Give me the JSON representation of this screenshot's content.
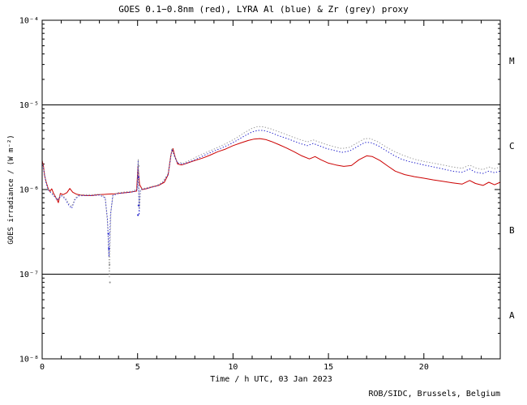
{
  "page": {
    "background": "#ffffff"
  },
  "footer": {
    "credit": "ROB/SIDC, Brussels, Belgium"
  },
  "chart_data": {
    "type": "line",
    "title": "GOES 0.1−0.8nm (red), LYRA Al (blue) & Zr (grey) proxy",
    "xlabel": "Time / h UTC, 03 Jan 2023",
    "ylabel": "GOES irradiance / (W m⁻²)",
    "xlim": [
      0,
      24
    ],
    "ylim": [
      1e-08,
      0.0001
    ],
    "y_scale": "log",
    "grid": false,
    "legend_position": "in-title",
    "x_ticks": {
      "major": [
        {
          "value": 0,
          "label": "0"
        },
        {
          "value": 5,
          "label": "5"
        },
        {
          "value": 10,
          "label": "10"
        },
        {
          "value": 15,
          "label": "15"
        },
        {
          "value": 20,
          "label": "20"
        }
      ],
      "minor_step": 1
    },
    "y_ticks": [
      {
        "value": 0.0001,
        "label": "10⁻⁴"
      },
      {
        "value": 1e-05,
        "label": "10⁻⁵"
      },
      {
        "value": 1e-06,
        "label": "10⁻⁶"
      },
      {
        "value": 1e-07,
        "label": "10⁻⁷"
      },
      {
        "value": 1e-08,
        "label": "10⁻⁸"
      }
    ],
    "threshold_lines": [
      {
        "value": 1e-05
      },
      {
        "value": 1e-07
      }
    ],
    "class_labels": [
      {
        "label": "M",
        "value": 3.2e-05
      },
      {
        "label": "C",
        "value": 3.2e-06
      },
      {
        "label": "B",
        "value": 3.2e-07
      },
      {
        "label": "A",
        "value": 3.2e-08
      }
    ],
    "flux_unit": "W m⁻²",
    "series": [
      {
        "name": "GOES 0.1-0.8nm",
        "color": "#cc0000",
        "style": "solid",
        "scale": 1e-06,
        "points": [
          [
            0,
            2.2
          ],
          [
            0.07,
            1.9
          ],
          [
            0.12,
            1.5
          ],
          [
            0.2,
            1.25
          ],
          [
            0.3,
            1.05
          ],
          [
            0.4,
            0.95
          ],
          [
            0.5,
            1.02
          ],
          [
            0.6,
            0.9
          ],
          [
            0.75,
            0.78
          ],
          [
            0.85,
            0.7
          ],
          [
            0.95,
            0.9
          ],
          [
            1.1,
            0.87
          ],
          [
            1.3,
            0.92
          ],
          [
            1.45,
            1.03
          ],
          [
            1.6,
            0.93
          ],
          [
            1.8,
            0.88
          ],
          [
            2,
            0.86
          ],
          [
            2.3,
            0.85
          ],
          [
            2.6,
            0.85
          ],
          [
            3,
            0.87
          ],
          [
            3.4,
            0.88
          ],
          [
            3.8,
            0.89
          ],
          [
            4.2,
            0.91
          ],
          [
            4.6,
            0.93
          ],
          [
            4.95,
            0.96
          ],
          [
            5.02,
            1.9
          ],
          [
            5.1,
            1.15
          ],
          [
            5.25,
            1.0
          ],
          [
            5.5,
            1.03
          ],
          [
            5.8,
            1.08
          ],
          [
            6.1,
            1.12
          ],
          [
            6.4,
            1.22
          ],
          [
            6.6,
            1.5
          ],
          [
            6.75,
            2.6
          ],
          [
            6.85,
            3.05
          ],
          [
            6.95,
            2.5
          ],
          [
            7.1,
            2.0
          ],
          [
            7.3,
            1.95
          ],
          [
            7.6,
            2.05
          ],
          [
            8,
            2.2
          ],
          [
            8.4,
            2.35
          ],
          [
            8.8,
            2.55
          ],
          [
            9.2,
            2.8
          ],
          [
            9.6,
            3.0
          ],
          [
            10,
            3.3
          ],
          [
            10.4,
            3.55
          ],
          [
            10.8,
            3.8
          ],
          [
            11.1,
            3.95
          ],
          [
            11.4,
            4.0
          ],
          [
            11.7,
            3.9
          ],
          [
            12,
            3.7
          ],
          [
            12.4,
            3.4
          ],
          [
            12.8,
            3.1
          ],
          [
            13.2,
            2.8
          ],
          [
            13.6,
            2.5
          ],
          [
            14,
            2.3
          ],
          [
            14.3,
            2.45
          ],
          [
            14.6,
            2.25
          ],
          [
            15,
            2.05
          ],
          [
            15.4,
            1.95
          ],
          [
            15.8,
            1.88
          ],
          [
            16.2,
            1.92
          ],
          [
            16.6,
            2.25
          ],
          [
            17,
            2.5
          ],
          [
            17.3,
            2.45
          ],
          [
            17.7,
            2.2
          ],
          [
            18.1,
            1.9
          ],
          [
            18.5,
            1.65
          ],
          [
            19,
            1.5
          ],
          [
            19.5,
            1.42
          ],
          [
            20,
            1.36
          ],
          [
            20.5,
            1.3
          ],
          [
            21,
            1.25
          ],
          [
            21.5,
            1.2
          ],
          [
            22,
            1.16
          ],
          [
            22.4,
            1.28
          ],
          [
            22.7,
            1.18
          ],
          [
            23.1,
            1.12
          ],
          [
            23.4,
            1.22
          ],
          [
            23.7,
            1.14
          ],
          [
            24,
            1.22
          ]
        ]
      },
      {
        "name": "LYRA Al proxy",
        "color": "#2222cc",
        "style": "dotted",
        "scale": 1e-06,
        "points": [
          [
            0,
            2.1
          ],
          [
            0.1,
            1.6
          ],
          [
            0.2,
            1.2
          ],
          [
            0.3,
            1.0
          ],
          [
            0.45,
            0.92
          ],
          [
            0.6,
            0.85
          ],
          [
            0.8,
            0.75
          ],
          [
            1,
            0.85
          ],
          [
            1.2,
            0.78
          ],
          [
            1.4,
            0.65
          ],
          [
            1.55,
            0.6
          ],
          [
            1.7,
            0.75
          ],
          [
            1.9,
            0.84
          ],
          [
            2.2,
            0.85
          ],
          [
            2.6,
            0.85
          ],
          [
            3,
            0.86
          ],
          [
            3.3,
            0.8
          ],
          [
            3.42,
            0.45
          ],
          [
            3.5,
            0.16
          ],
          [
            3.58,
            0.5
          ],
          [
            3.7,
            0.85
          ],
          [
            4,
            0.9
          ],
          [
            4.4,
            0.92
          ],
          [
            4.8,
            0.94
          ],
          [
            4.98,
            1.0
          ],
          [
            5.03,
            2.2
          ],
          [
            5.08,
            0.5
          ],
          [
            5.15,
            1.0
          ],
          [
            5.4,
            1.02
          ],
          [
            5.7,
            1.06
          ],
          [
            6,
            1.1
          ],
          [
            6.3,
            1.2
          ],
          [
            6.6,
            1.5
          ],
          [
            6.8,
            3.0
          ],
          [
            6.95,
            2.4
          ],
          [
            7.1,
            2.05
          ],
          [
            7.4,
            2.0
          ],
          [
            7.8,
            2.15
          ],
          [
            8.2,
            2.35
          ],
          [
            8.6,
            2.6
          ],
          [
            9,
            2.85
          ],
          [
            9.4,
            3.1
          ],
          [
            9.8,
            3.4
          ],
          [
            10.2,
            3.8
          ],
          [
            10.6,
            4.3
          ],
          [
            11,
            4.8
          ],
          [
            11.3,
            5.0
          ],
          [
            11.6,
            5.0
          ],
          [
            12,
            4.7
          ],
          [
            12.3,
            4.4
          ],
          [
            12.7,
            4.1
          ],
          [
            13.1,
            3.8
          ],
          [
            13.5,
            3.5
          ],
          [
            13.9,
            3.3
          ],
          [
            14.2,
            3.5
          ],
          [
            14.5,
            3.3
          ],
          [
            14.9,
            3.05
          ],
          [
            15.3,
            2.9
          ],
          [
            15.7,
            2.75
          ],
          [
            16.1,
            2.85
          ],
          [
            16.5,
            3.2
          ],
          [
            16.9,
            3.6
          ],
          [
            17.2,
            3.6
          ],
          [
            17.6,
            3.3
          ],
          [
            18,
            2.9
          ],
          [
            18.4,
            2.55
          ],
          [
            18.8,
            2.3
          ],
          [
            19.2,
            2.15
          ],
          [
            19.6,
            2.05
          ],
          [
            20,
            1.95
          ],
          [
            20.5,
            1.85
          ],
          [
            21,
            1.75
          ],
          [
            21.5,
            1.65
          ],
          [
            22,
            1.6
          ],
          [
            22.4,
            1.75
          ],
          [
            22.7,
            1.6
          ],
          [
            23.1,
            1.55
          ],
          [
            23.4,
            1.65
          ],
          [
            23.7,
            1.58
          ],
          [
            24,
            1.65
          ]
        ]
      },
      {
        "name": "LYRA Zr proxy",
        "color": "#999999",
        "style": "dotted",
        "scale": 1e-06,
        "points": [
          [
            0,
            2.15
          ],
          [
            0.1,
            1.65
          ],
          [
            0.2,
            1.25
          ],
          [
            0.3,
            1.02
          ],
          [
            0.45,
            0.94
          ],
          [
            0.6,
            0.87
          ],
          [
            0.8,
            0.77
          ],
          [
            1,
            0.87
          ],
          [
            1.2,
            0.8
          ],
          [
            1.4,
            0.68
          ],
          [
            1.55,
            0.63
          ],
          [
            1.7,
            0.77
          ],
          [
            1.9,
            0.86
          ],
          [
            2.2,
            0.87
          ],
          [
            2.6,
            0.87
          ],
          [
            3,
            0.88
          ],
          [
            3.3,
            0.82
          ],
          [
            3.45,
            0.35
          ],
          [
            3.52,
            0.09
          ],
          [
            3.6,
            0.55
          ],
          [
            3.72,
            0.87
          ],
          [
            4,
            0.92
          ],
          [
            4.4,
            0.94
          ],
          [
            4.8,
            0.96
          ],
          [
            4.99,
            1.05
          ],
          [
            5.04,
            2.3
          ],
          [
            5.09,
            0.6
          ],
          [
            5.16,
            1.02
          ],
          [
            5.4,
            1.04
          ],
          [
            5.7,
            1.08
          ],
          [
            6,
            1.12
          ],
          [
            6.3,
            1.22
          ],
          [
            6.6,
            1.55
          ],
          [
            6.8,
            3.1
          ],
          [
            6.95,
            2.45
          ],
          [
            7.1,
            2.1
          ],
          [
            7.4,
            2.05
          ],
          [
            7.8,
            2.25
          ],
          [
            8.2,
            2.5
          ],
          [
            8.6,
            2.75
          ],
          [
            9,
            3.0
          ],
          [
            9.4,
            3.3
          ],
          [
            9.8,
            3.65
          ],
          [
            10.2,
            4.1
          ],
          [
            10.6,
            4.7
          ],
          [
            11,
            5.3
          ],
          [
            11.3,
            5.55
          ],
          [
            11.6,
            5.5
          ],
          [
            12,
            5.2
          ],
          [
            12.3,
            4.9
          ],
          [
            12.7,
            4.55
          ],
          [
            13.1,
            4.2
          ],
          [
            13.5,
            3.9
          ],
          [
            13.9,
            3.65
          ],
          [
            14.2,
            3.85
          ],
          [
            14.5,
            3.65
          ],
          [
            14.9,
            3.4
          ],
          [
            15.3,
            3.2
          ],
          [
            15.7,
            3.05
          ],
          [
            16.1,
            3.15
          ],
          [
            16.5,
            3.55
          ],
          [
            16.9,
            4.0
          ],
          [
            17.2,
            4.0
          ],
          [
            17.6,
            3.65
          ],
          [
            18,
            3.2
          ],
          [
            18.4,
            2.85
          ],
          [
            18.8,
            2.6
          ],
          [
            19.2,
            2.4
          ],
          [
            19.6,
            2.25
          ],
          [
            20,
            2.15
          ],
          [
            20.5,
            2.05
          ],
          [
            21,
            1.95
          ],
          [
            21.5,
            1.85
          ],
          [
            22,
            1.78
          ],
          [
            22.4,
            1.95
          ],
          [
            22.7,
            1.8
          ],
          [
            23.1,
            1.72
          ],
          [
            23.4,
            1.85
          ],
          [
            23.7,
            1.76
          ],
          [
            24,
            1.85
          ]
        ]
      }
    ],
    "extra_points": [
      {
        "t": 3.47,
        "flux": 3e-07,
        "color": "#2222cc"
      },
      {
        "t": 3.5,
        "flux": 2e-07,
        "color": "#2222cc"
      },
      {
        "t": 3.53,
        "flux": 1.3e-07,
        "color": "#999999"
      },
      {
        "t": 3.55,
        "flux": 8e-08,
        "color": "#999999"
      },
      {
        "t": 5.02,
        "flux": 5e-07,
        "color": "#2222cc"
      },
      {
        "t": 5.05,
        "flux": 6.5e-07,
        "color": "#2222cc"
      },
      {
        "t": 5.05,
        "flux": 1.4e-06,
        "color": "#2222cc"
      },
      {
        "t": 5.06,
        "flux": 1.9e-06,
        "color": "#999999"
      }
    ]
  }
}
